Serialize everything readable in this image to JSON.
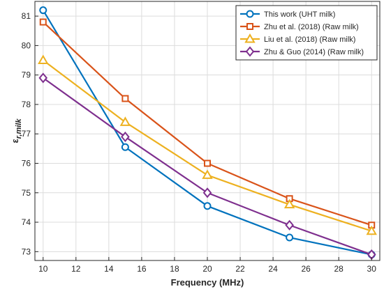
{
  "chart_data": {
    "type": "line",
    "xlabel": "Frequency (MHz)",
    "ylabel_main": "ε",
    "ylabel_sub": "r,milk",
    "xlim": [
      9.5,
      30.5
    ],
    "ylim": [
      72.7,
      81.5
    ],
    "x_ticks": [
      10,
      12,
      14,
      16,
      18,
      20,
      22,
      24,
      26,
      28,
      30
    ],
    "y_ticks": [
      73,
      74,
      75,
      76,
      77,
      78,
      79,
      80,
      81
    ],
    "grid": true,
    "legend_position": "top-right",
    "x": [
      10,
      15,
      20,
      25,
      30
    ],
    "series": [
      {
        "name": "This work (UHT milk)",
        "values": [
          81.2,
          76.55,
          74.55,
          73.48,
          72.9
        ],
        "color": "#0072BD",
        "marker": "circle"
      },
      {
        "name": "Zhu et al. (2018) (Raw milk)",
        "values": [
          80.8,
          78.2,
          76.0,
          74.8,
          73.9
        ],
        "color": "#D95319",
        "marker": "square"
      },
      {
        "name": "Liu et al. (2018) (Raw milk)",
        "values": [
          79.5,
          77.4,
          75.6,
          74.6,
          73.7
        ],
        "color": "#EDB120",
        "marker": "triangle"
      },
      {
        "name": "Zhu & Guo (2014) (Raw milk)",
        "values": [
          78.9,
          76.9,
          75.0,
          73.9,
          72.9
        ],
        "color": "#7E2F8E",
        "marker": "diamond"
      }
    ]
  }
}
